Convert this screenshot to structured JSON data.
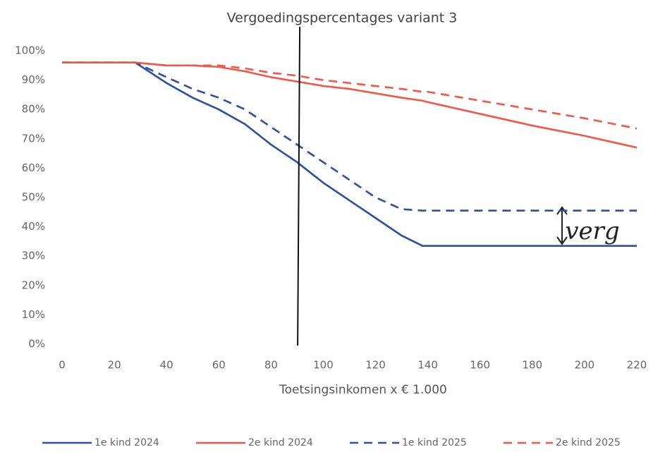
{
  "chart_data": {
    "type": "line",
    "title": "Vergoedingspercentages variant 3",
    "x_label": "Toetsingsinkomen x € 1.000",
    "annotation": "verg",
    "marker_x": 91,
    "x": [
      0,
      28,
      40,
      50,
      60,
      70,
      80,
      90,
      100,
      110,
      120,
      130,
      138,
      140,
      160,
      180,
      200,
      220
    ],
    "series": [
      {
        "name": "1e kind 2024",
        "color": "#2f4f9f",
        "dashed": false,
        "values": [
          96,
          96,
          89,
          84,
          80,
          75,
          68,
          62,
          55,
          49,
          43,
          37,
          33.5,
          33.5,
          33.5,
          33.5,
          33.5,
          33.5
        ]
      },
      {
        "name": "2e kind 2024",
        "color": "#f0584a",
        "dashed": false,
        "values": [
          96,
          96,
          95,
          95,
          94.5,
          93,
          91,
          89.5,
          88,
          87,
          85.5,
          84,
          83,
          82.5,
          78.5,
          74.5,
          71,
          67
        ]
      },
      {
        "name": "1e kind 2025",
        "color": "#2f4f9f",
        "dashed": true,
        "values": [
          96,
          96,
          91,
          87,
          84,
          80,
          74,
          68,
          62,
          56,
          50,
          46,
          45.5,
          45.5,
          45.5,
          45.5,
          45.5,
          45.5
        ]
      },
      {
        "name": "2e kind 2025",
        "color": "#f0584a",
        "dashed": true,
        "values": [
          96,
          96,
          95,
          95,
          95,
          94,
          92.5,
          91.5,
          90,
          89,
          88,
          87,
          86,
          86,
          83,
          80,
          77,
          73.5
        ]
      }
    ],
    "xlim": [
      0,
      220
    ],
    "xticks": [
      0,
      20,
      40,
      60,
      80,
      100,
      120,
      140,
      160,
      180,
      200,
      220
    ],
    "ylim": [
      0,
      100
    ],
    "yticks": [
      {
        "value": 0,
        "label": "0%"
      },
      {
        "value": 10,
        "label": "10%"
      },
      {
        "value": 20,
        "label": "20%"
      },
      {
        "value": 30,
        "label": "30%"
      },
      {
        "value": 40,
        "label": "40%"
      },
      {
        "value": 50,
        "label": "50%"
      },
      {
        "value": 60,
        "label": "60%"
      },
      {
        "value": 70,
        "label": "70%"
      },
      {
        "value": 80,
        "label": "80%"
      },
      {
        "value": 90,
        "label": "90%"
      },
      {
        "value": 100,
        "label": "100%"
      }
    ],
    "grid": false
  }
}
